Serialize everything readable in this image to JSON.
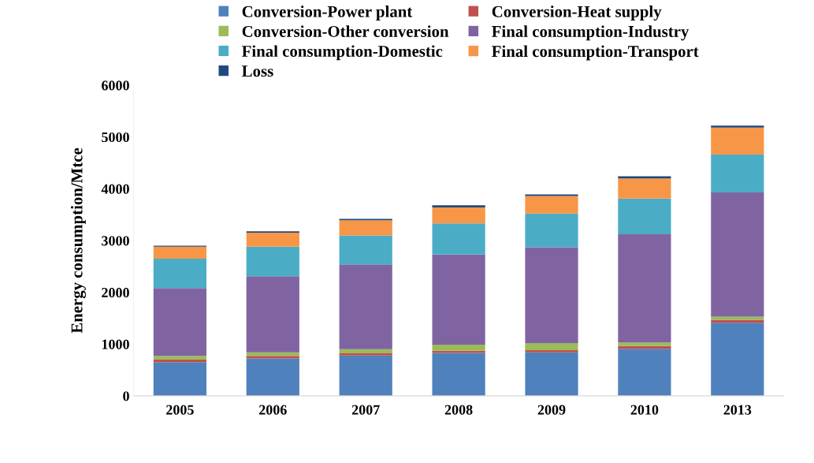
{
  "chart_data": {
    "type": "bar",
    "stacked": true,
    "ylabel": "Energy consumption/Mtce",
    "categories": [
      "2005",
      "2006",
      "2007",
      "2008",
      "2009",
      "2010",
      "2013"
    ],
    "series": [
      {
        "name": "Conversion-Power plant",
        "color": "#4f81bd",
        "values": [
          650,
          720,
          780,
          830,
          840,
          910,
          1410
        ]
      },
      {
        "name": "Conversion-Heat supply",
        "color": "#c0504d",
        "values": [
          50,
          50,
          40,
          40,
          40,
          50,
          60
        ]
      },
      {
        "name": "Conversion-Other conversion",
        "color": "#9bbb59",
        "values": [
          70,
          70,
          80,
          120,
          140,
          70,
          60
        ]
      },
      {
        "name": "Final consumption-Industry",
        "color": "#8064a2",
        "values": [
          1310,
          1470,
          1640,
          1740,
          1850,
          2090,
          2400
        ]
      },
      {
        "name": "Final consumption-Domestic",
        "color": "#4bacc6",
        "values": [
          570,
          570,
          560,
          600,
          650,
          690,
          730
        ]
      },
      {
        "name": "Final consumption-Transport",
        "color": "#f79646",
        "values": [
          230,
          270,
          290,
          310,
          340,
          390,
          520
        ]
      },
      {
        "name": "Loss",
        "color": "#1f497d",
        "values": [
          20,
          30,
          30,
          40,
          30,
          40,
          40
        ]
      }
    ],
    "ylim": [
      0,
      6000
    ],
    "yticks": [
      0,
      1000,
      2000,
      3000,
      4000,
      5000,
      6000
    ],
    "grid": false,
    "legend": "top"
  }
}
